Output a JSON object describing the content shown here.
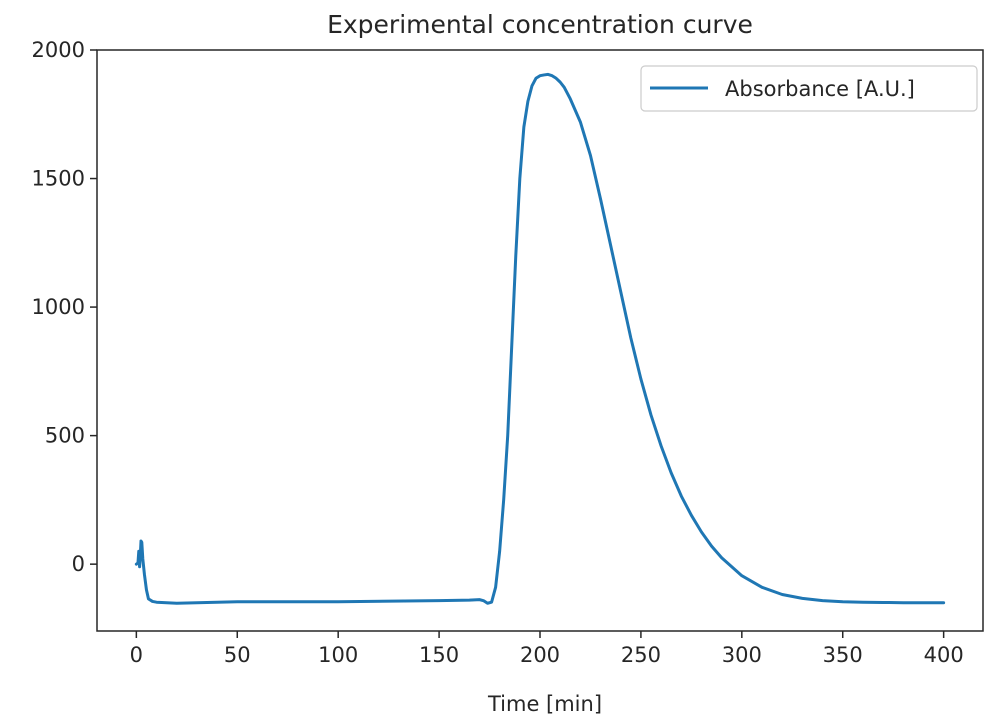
{
  "chart_data": {
    "type": "line",
    "title": "Experimental concentration curve",
    "xlabel": "Time [min]",
    "ylabel": "",
    "xlim": [
      -19.5,
      419.5
    ],
    "ylim": [
      -260,
      2000
    ],
    "xticks": [
      0,
      50,
      100,
      150,
      200,
      250,
      300,
      350,
      400
    ],
    "yticks": [
      0,
      500,
      1000,
      1500,
      2000
    ],
    "grid": false,
    "legend_position": "top-right",
    "series": [
      {
        "name": "Absorbance [A.U.]",
        "color": "#1f77b4",
        "x": [
          0,
          0.8,
          1.2,
          1.6,
          2.0,
          2.3,
          2.7,
          3.2,
          4,
          5,
          6,
          8,
          10,
          20,
          30,
          50,
          100,
          150,
          165,
          170,
          172,
          174,
          176,
          178,
          180,
          182,
          184,
          186,
          188,
          190,
          192,
          194,
          196,
          198,
          200,
          202,
          204,
          206,
          208,
          210,
          212,
          215,
          220,
          225,
          230,
          235,
          240,
          245,
          250,
          255,
          260,
          265,
          270,
          275,
          280,
          285,
          290,
          295,
          300,
          310,
          320,
          330,
          340,
          350,
          360,
          370,
          380,
          390,
          400
        ],
        "y": [
          0,
          5,
          50,
          -10,
          40,
          90,
          85,
          20,
          -40,
          -100,
          -135,
          -145,
          -148,
          -152,
          -150,
          -146,
          -146,
          -142,
          -140,
          -138,
          -142,
          -152,
          -148,
          -90,
          50,
          250,
          500,
          850,
          1200,
          1500,
          1700,
          1800,
          1860,
          1890,
          1900,
          1903,
          1905,
          1900,
          1890,
          1875,
          1855,
          1810,
          1720,
          1590,
          1420,
          1240,
          1060,
          880,
          720,
          580,
          460,
          355,
          265,
          190,
          125,
          70,
          25,
          -10,
          -45,
          -90,
          -118,
          -133,
          -142,
          -146,
          -148,
          -149,
          -150,
          -150,
          -150
        ]
      }
    ]
  }
}
